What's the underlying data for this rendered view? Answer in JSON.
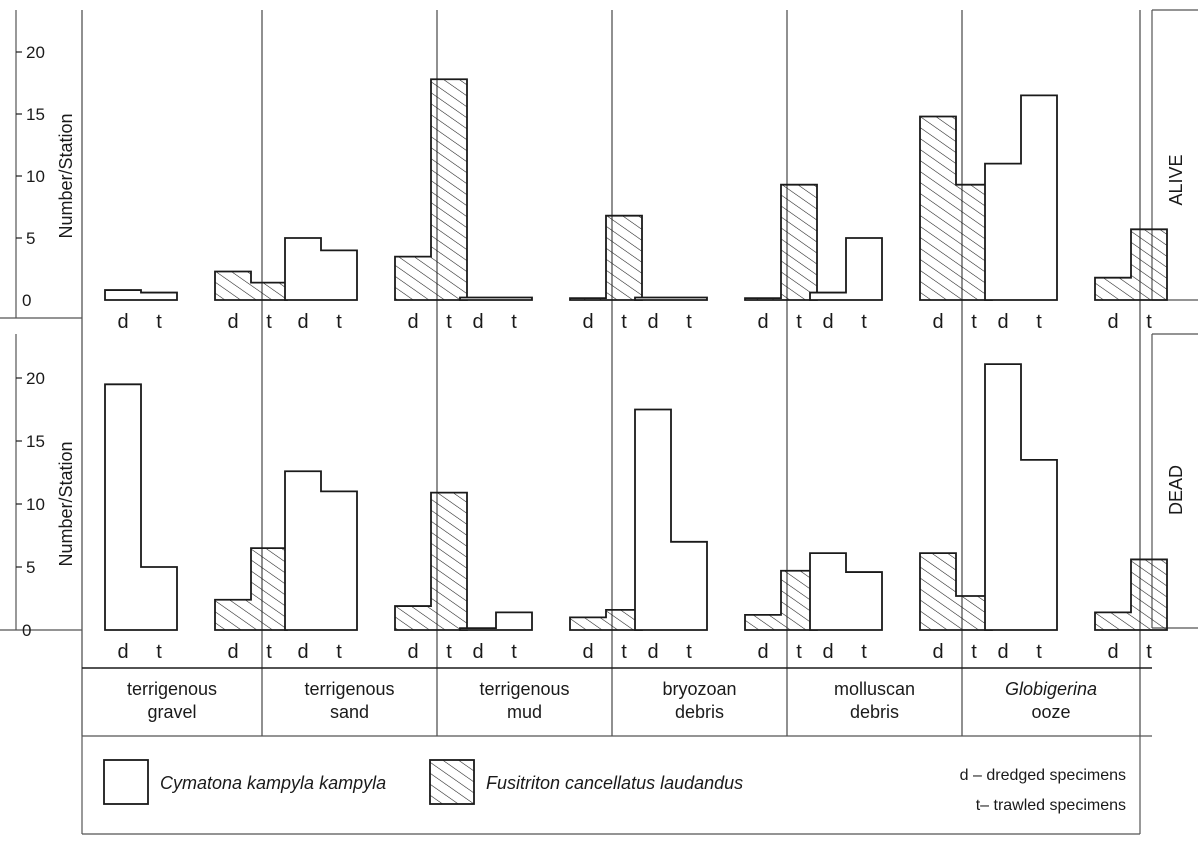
{
  "chart_data": {
    "type": "bar",
    "layout": "two stacked panels (alive over dead), six substrate columns, each with paired step-bars for two species",
    "ylabel": "Number/Station",
    "ylim": [
      0,
      21
    ],
    "yticks": [
      "0",
      "5",
      "10",
      "15",
      "20"
    ],
    "pair_labels": [
      "d",
      "t"
    ],
    "categories": [
      [
        "terrigenous",
        "gravel"
      ],
      [
        "terrigenous",
        "sand"
      ],
      [
        "terrigenous",
        "mud"
      ],
      [
        "bryozoan",
        "debris"
      ],
      [
        "molluscan",
        "debris"
      ],
      [
        "Globigerina",
        "ooze"
      ]
    ],
    "category_italic": [
      false,
      false,
      false,
      false,
      false,
      true
    ],
    "panels": [
      {
        "name": "ALIVE",
        "series": [
          {
            "species": "Cymatona kampyla kampyla",
            "pattern": "open",
            "d": [
              0.8,
              5.0,
              0.2,
              0.2,
              0.6,
              11.0
            ],
            "t": [
              0.6,
              4.0,
              0.2,
              0.2,
              5.0,
              16.5
            ]
          },
          {
            "species": "Fusitriton cancellatus laudandus",
            "pattern": "hatched",
            "d": [
              2.3,
              3.5,
              0.1,
              0.1,
              14.8,
              1.8
            ],
            "t": [
              1.4,
              17.8,
              6.8,
              9.3,
              9.3,
              5.7
            ]
          }
        ]
      },
      {
        "name": "DEAD",
        "series": [
          {
            "species": "Cymatona kampyla kampyla",
            "pattern": "open",
            "d": [
              19.5,
              12.6,
              0.1,
              17.5,
              6.1,
              21.1
            ],
            "t": [
              5.0,
              11.0,
              1.4,
              7.0,
              4.6,
              13.5
            ]
          },
          {
            "species": "Fusitriton cancellatus laudandus",
            "pattern": "hatched",
            "d": [
              2.4,
              1.9,
              1.0,
              1.2,
              6.1,
              1.4
            ],
            "t": [
              6.5,
              10.9,
              1.6,
              4.7,
              2.7,
              5.6
            ]
          }
        ]
      }
    ],
    "legend": {
      "items": [
        {
          "label": "Cymatona kampyla kampyla",
          "pattern": "open"
        },
        {
          "label": "Fusitriton cancellatus laudandus",
          "pattern": "hatched"
        }
      ],
      "notes": [
        "d – dredged specimens",
        "t– trawled specimens"
      ]
    },
    "colors": {
      "ink": "#1a1a1a",
      "rule": "#555555"
    }
  }
}
